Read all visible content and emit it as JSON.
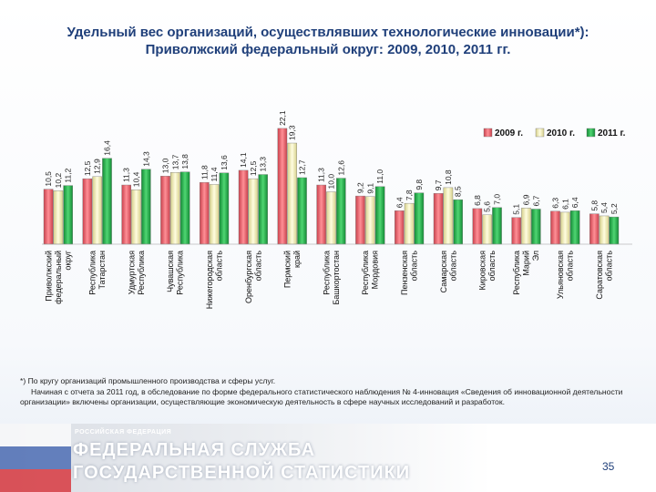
{
  "title": "Удельный вес организаций, осуществлявших технологические инновации*): Приволжский федеральный округ: 2009, 2010, 2011 гг.",
  "chart_data": {
    "type": "bar",
    "title": "Удельный вес организаций, осуществлявших технологические инновации*): Приволжский федеральный округ: 2009, 2010, 2011 гг.",
    "categories": [
      "Приволжский федеральный округ",
      "Республика Татарстан",
      "Удмуртская Республика",
      "Чувашская Республика",
      "Нижегородская область",
      "Оренбургская область",
      "Пермский край",
      "Республика Башкортостан",
      "Республика Мордовия",
      "Пензенская область",
      "Самарская область",
      "Кировская область",
      "Республика Марий Эл",
      "Ульяновская область",
      "Саратовская область"
    ],
    "series": [
      {
        "name": "2009 г.",
        "color": "#e06a72",
        "values": [
          10.5,
          12.5,
          11.3,
          13.0,
          11.8,
          14.1,
          22.1,
          11.3,
          9.2,
          6.4,
          9.7,
          6.8,
          5.1,
          6.3,
          5.8
        ]
      },
      {
        "name": "2010 г.",
        "color": "#f5f0b8",
        "values": [
          10.2,
          12.9,
          10.4,
          13.7,
          11.4,
          12.5,
          19.3,
          10.0,
          9.1,
          7.8,
          10.8,
          5.6,
          6.9,
          6.1,
          5.4
        ]
      },
      {
        "name": "2011 г.",
        "color": "#22b04b",
        "values": [
          11.2,
          16.4,
          14.3,
          13.8,
          13.6,
          13.3,
          12.7,
          12.6,
          11.0,
          9.8,
          8.5,
          7.0,
          6.7,
          6.4,
          5.2
        ]
      }
    ],
    "value_labels": [
      [
        "10,5",
        "10,2",
        "11,2"
      ],
      [
        "12,5",
        "12,9",
        "16,4"
      ],
      [
        "11,3",
        "10,4",
        "14,3"
      ],
      [
        "13,0",
        "13,7",
        "13,8"
      ],
      [
        "11,8",
        "11,4",
        "13,6"
      ],
      [
        "14,1",
        "12,5",
        "13,3"
      ],
      [
        "22,1",
        "19,3",
        "12,7"
      ],
      [
        "11,3",
        "10,0",
        "12,6"
      ],
      [
        "9,2",
        "9,1",
        "11,0"
      ],
      [
        "6,4",
        "7,8",
        "9,8"
      ],
      [
        "9,7",
        "10,8",
        "8,5"
      ],
      [
        "6,8",
        "5,6",
        "7,0"
      ],
      [
        "5,1",
        "6,9",
        "6,7"
      ],
      [
        "6,3",
        "6,1",
        "6,4"
      ],
      [
        "5,8",
        "5,4",
        "5,2"
      ]
    ],
    "ylim": [
      0,
      24
    ],
    "xlabel": "",
    "ylabel": "",
    "legend": "top-right",
    "grid": false
  },
  "footnote": {
    "line1": "*) По кругу организаций промышленного производства и сферы услуг.",
    "line2": "Начиная с отчета за 2011 год, в обследование по форме федерального статистического наблюдения № 4-инновация «Сведения об инновационной деятельности организации» включены организации, осуществляющие экономическую деятельность в сфере научных исследований и разработок."
  },
  "footer": {
    "org_top": "РОССИЙСКАЯ ФЕДЕРАЦИЯ",
    "org_line1": "ФЕДЕРАЛЬНАЯ СЛУЖБА",
    "org_line2": "ГОСУДАРСТВЕННОЙ СТАТИСТИКИ",
    "page_number": "35"
  },
  "colors": {
    "title": "#1f3f7a",
    "flag_white": "#ffffff",
    "flag_blue": "#3b5fae",
    "flag_red": "#d8232a"
  }
}
